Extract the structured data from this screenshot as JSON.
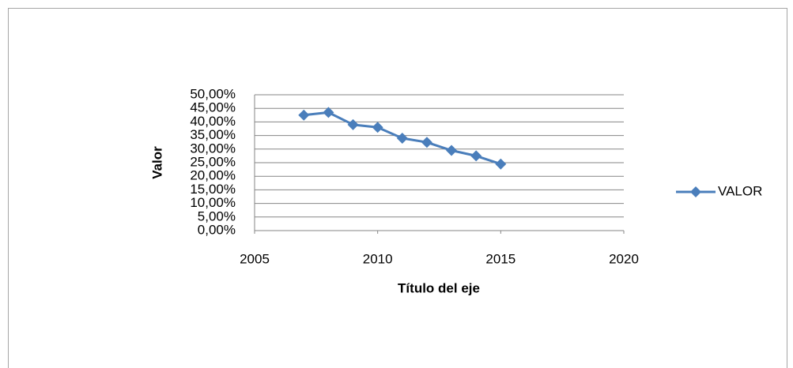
{
  "chart_data": {
    "type": "line",
    "x": [
      2007,
      2008,
      2009,
      2010,
      2011,
      2012,
      2013,
      2014,
      2015
    ],
    "series": [
      {
        "name": "VALOR",
        "color": "#4a7ebb",
        "values": [
          42.5,
          43.5,
          39,
          38,
          34,
          32.5,
          29.5,
          27.5,
          24.5
        ]
      }
    ],
    "xlim": [
      2005,
      2020
    ],
    "xticks": [
      2005,
      2010,
      2015,
      2020
    ],
    "ylim": [
      0,
      50
    ],
    "yticks": [
      {
        "value": 0,
        "label": "0,00%"
      },
      {
        "value": 5,
        "label": "5,00%"
      },
      {
        "value": 10,
        "label": "10,00%"
      },
      {
        "value": 15,
        "label": "15,00%"
      },
      {
        "value": 20,
        "label": "20,00%"
      },
      {
        "value": 25,
        "label": "25,00%"
      },
      {
        "value": 30,
        "label": "30,00%"
      },
      {
        "value": 35,
        "label": "35,00%"
      },
      {
        "value": 40,
        "label": "40,00%"
      },
      {
        "value": 45,
        "label": "45,00%"
      },
      {
        "value": 50,
        "label": "50,00%"
      }
    ],
    "xlabel": "Título del eje",
    "ylabel": "Valor",
    "grid": true,
    "legend": "right"
  }
}
